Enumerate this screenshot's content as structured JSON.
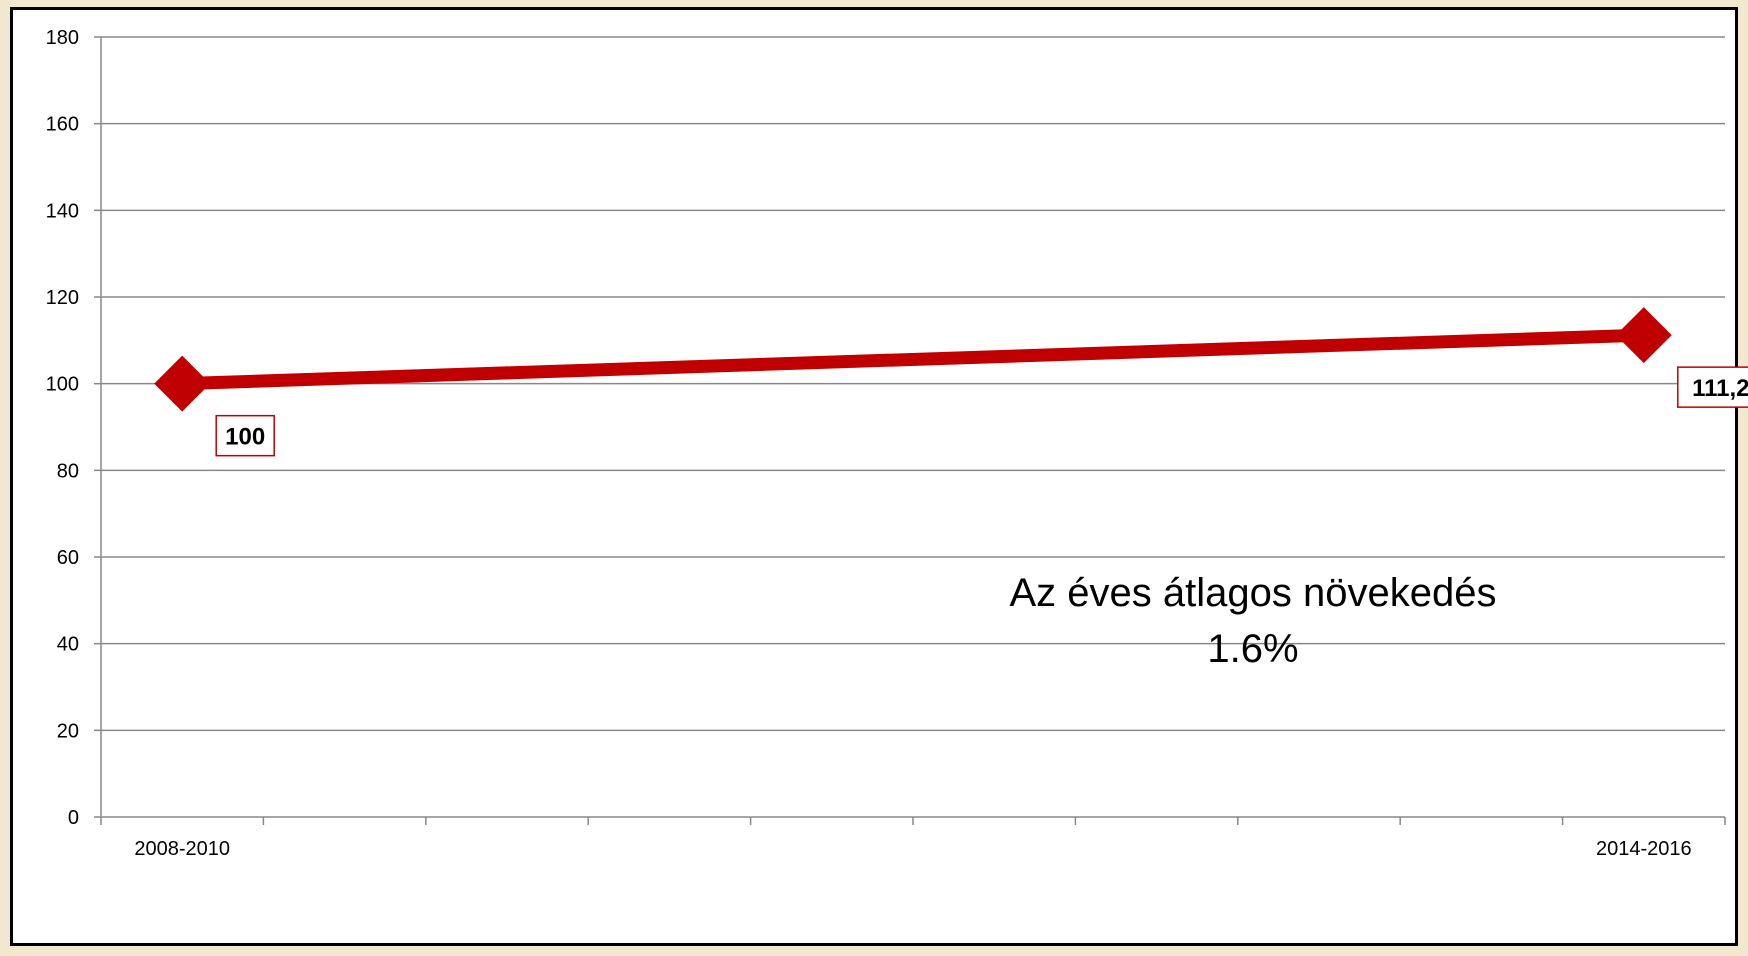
{
  "chart_data": {
    "type": "line",
    "categories": [
      "2008-2010",
      "",
      "",
      "",
      "",
      "",
      "",
      "",
      "",
      "2014-2016"
    ],
    "series": [
      {
        "values": [
          100,
          null,
          null,
          null,
          null,
          null,
          null,
          null,
          null,
          111.2
        ],
        "labels": [
          "100",
          "111,2"
        ],
        "color": "#c00000"
      }
    ],
    "ylim": [
      0,
      180
    ],
    "yticks": [
      0,
      20,
      40,
      60,
      80,
      100,
      120,
      140,
      160,
      180
    ],
    "xtick_labels": [
      "2008-2010",
      "2014-2016"
    ],
    "grid": true,
    "legend": "none",
    "annotation": {
      "line1": "Az éves átlagos növekedés",
      "line2": "1.6%"
    }
  },
  "colors": {
    "line": "#c00000",
    "label_border": "#c00000",
    "grid": "#888888",
    "frame": "#000000",
    "background": "#f2e8cf"
  }
}
